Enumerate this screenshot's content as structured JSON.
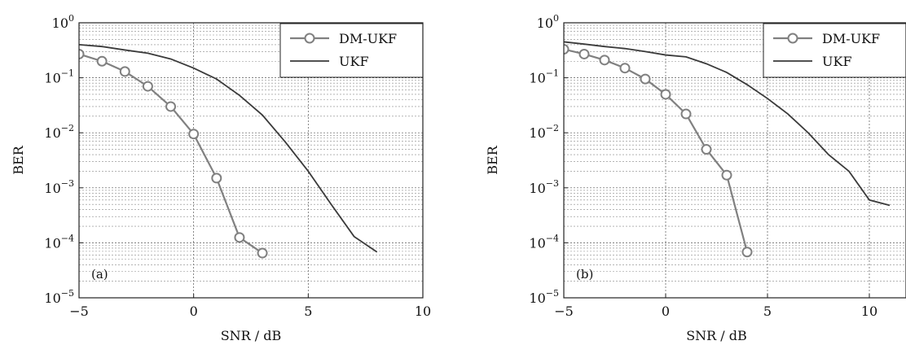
{
  "chart_data": [
    {
      "type": "line",
      "panel_tag": "(a)",
      "xlabel": "SNR / dB",
      "ylabel": "BER",
      "xlim": [
        -5,
        10
      ],
      "ylim": [
        1e-05,
        1
      ],
      "yscale": "log",
      "grid": true,
      "legend_position": "top-right",
      "x_ticks": [
        {
          "value": -5,
          "label": "−5"
        },
        {
          "value": 0,
          "label": "0"
        },
        {
          "value": 5,
          "label": "5"
        },
        {
          "value": 10,
          "label": "10"
        }
      ],
      "y_ticks": [
        {
          "value": 1,
          "base": "10",
          "exp": "0"
        },
        {
          "value": 0.1,
          "base": "10",
          "exp": "−1"
        },
        {
          "value": 0.01,
          "base": "10",
          "exp": "−2"
        },
        {
          "value": 0.001,
          "base": "10",
          "exp": "−3"
        },
        {
          "value": 0.0001,
          "base": "10",
          "exp": "−4"
        },
        {
          "value": 1e-05,
          "base": "10",
          "exp": "−5"
        }
      ],
      "series": [
        {
          "name": "DM-UKF",
          "color": "#808080",
          "marker": "circle",
          "x": [
            -5,
            -4,
            -3,
            -2,
            -1,
            0,
            1,
            2,
            3
          ],
          "y": [
            0.27,
            0.2,
            0.13,
            0.07,
            0.03,
            0.0095,
            0.0015,
            0.000125,
            6.5e-05
          ]
        },
        {
          "name": "UKF",
          "color": "#3a3a3a",
          "marker": "none",
          "x": [
            -5,
            -4,
            -3,
            -2,
            -1,
            0,
            1,
            2,
            3,
            4,
            5,
            6,
            7,
            8
          ],
          "y": [
            0.4,
            0.37,
            0.32,
            0.28,
            0.22,
            0.15,
            0.095,
            0.048,
            0.021,
            0.0068,
            0.002,
            0.0005,
            0.00013,
            6.8e-05
          ]
        }
      ]
    },
    {
      "type": "line",
      "panel_tag": "(b)",
      "xlabel": "SNR / dB",
      "ylabel": "BER",
      "xlim": [
        -5,
        10
      ],
      "ylim": [
        1e-05,
        1
      ],
      "yscale": "log",
      "grid": true,
      "legend_position": "top-right",
      "x_ticks": [
        {
          "value": -5,
          "label": "−5"
        },
        {
          "value": 0,
          "label": "0"
        },
        {
          "value": 5,
          "label": "5"
        },
        {
          "value": 10,
          "label": "10"
        }
      ],
      "y_ticks": [
        {
          "value": 1,
          "base": "10",
          "exp": "0"
        },
        {
          "value": 0.1,
          "base": "10",
          "exp": "−1"
        },
        {
          "value": 0.01,
          "base": "10",
          "exp": "−2"
        },
        {
          "value": 0.001,
          "base": "10",
          "exp": "−3"
        },
        {
          "value": 0.0001,
          "base": "10",
          "exp": "−4"
        },
        {
          "value": 1e-05,
          "base": "10",
          "exp": "−5"
        }
      ],
      "series": [
        {
          "name": "DM-UKF",
          "color": "#808080",
          "marker": "circle",
          "x": [
            -5,
            -4,
            -3,
            -2,
            -1,
            0,
            1,
            2,
            3,
            4
          ],
          "y": [
            0.33,
            0.27,
            0.21,
            0.15,
            0.095,
            0.05,
            0.022,
            0.005,
            0.0017,
            6.8e-05
          ]
        },
        {
          "name": "UKF",
          "color": "#3a3a3a",
          "marker": "none",
          "x": [
            -5,
            -4,
            -3,
            -2,
            -1,
            0,
            1,
            2,
            3,
            4,
            5,
            6,
            7,
            8,
            9,
            10,
            11
          ],
          "y": [
            0.45,
            0.41,
            0.37,
            0.34,
            0.3,
            0.26,
            0.24,
            0.18,
            0.125,
            0.075,
            0.042,
            0.022,
            0.01,
            0.004,
            0.002,
            0.0006,
            0.00048
          ]
        }
      ]
    }
  ]
}
